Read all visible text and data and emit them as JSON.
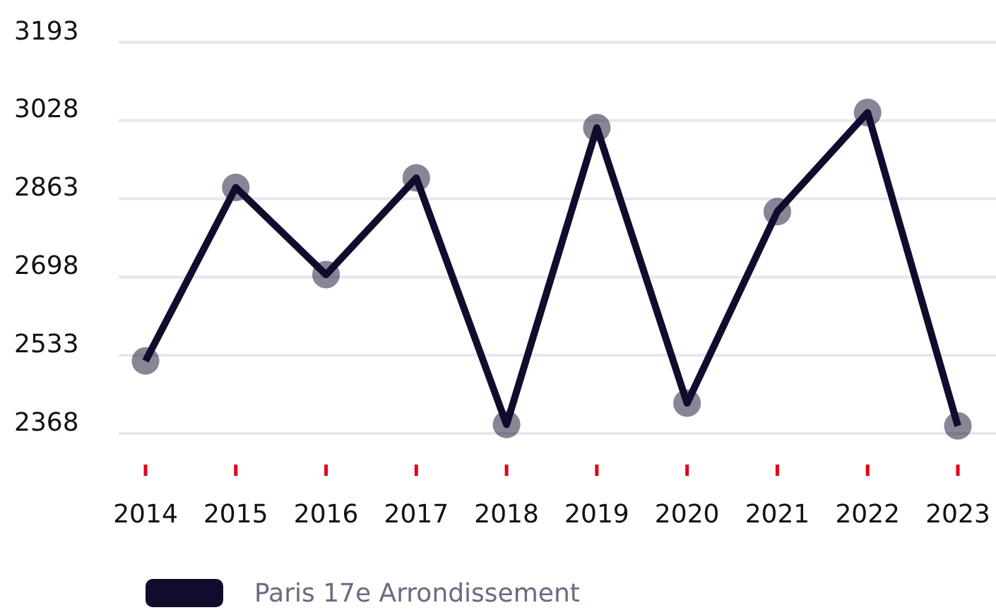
{
  "chart_data": {
    "type": "line",
    "categories": [
      "2014",
      "2015",
      "2016",
      "2017",
      "2018",
      "2019",
      "2020",
      "2021",
      "2022",
      "2023"
    ],
    "series": [
      {
        "name": "Paris 17e Arrondissement",
        "color": "#0f0c2e",
        "values": [
          2521,
          2887,
          2703,
          2907,
          2387,
          3013,
          2432,
          2836,
          3045,
          2384
        ]
      }
    ],
    "ylim": [
      2368,
      3193
    ],
    "yticks": [
      2368,
      2533,
      2698,
      2863,
      3028,
      3193
    ],
    "grid": "y",
    "legend": "bottom",
    "marker": "circle",
    "line_style": "solid"
  }
}
